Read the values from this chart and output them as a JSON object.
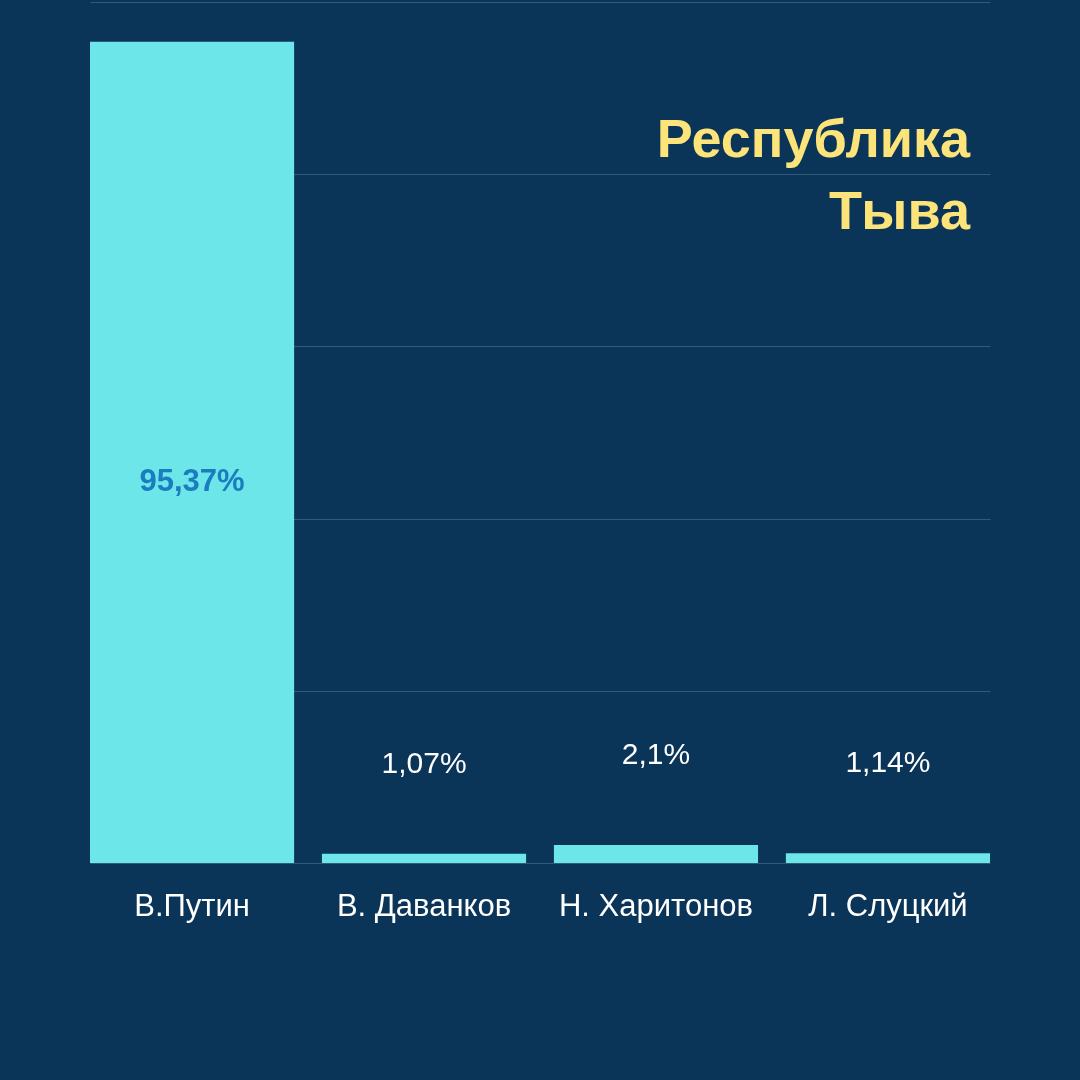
{
  "chart_data": {
    "type": "bar",
    "title": "Республика Тыва",
    "categories": [
      "В.Путин",
      "В. Даванков",
      "Н. Харитонов",
      "Л. Слуцкий"
    ],
    "values": [
      95.37,
      1.07,
      2.1,
      1.14
    ],
    "color": "#6ce6e9",
    "value_labels": [
      "95,37%",
      "1,07%",
      "2,1%",
      "1,14%"
    ],
    "ylim": [
      0,
      100
    ],
    "yticks": [
      {
        "value": 0,
        "label": null
      },
      {
        "value": 20,
        "label": null
      },
      {
        "value": 40,
        "label": null
      },
      {
        "value": 60,
        "label": null
      },
      {
        "value": 80,
        "label": null
      },
      {
        "value": 100,
        "label": null
      }
    ],
    "grid": "y",
    "tick_labels": "x"
  }
}
